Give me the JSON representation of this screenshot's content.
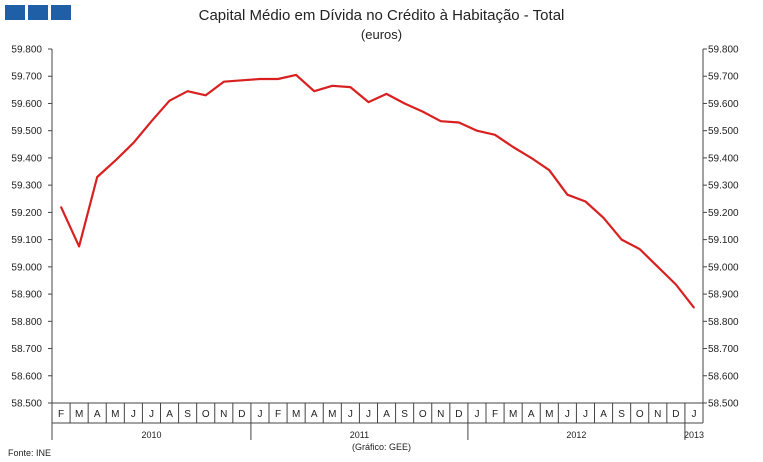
{
  "logo": {
    "color": "#1f5fa8"
  },
  "title": "Capital Médio em Dívida no Crédito à Habitação - Total",
  "subtitle": "(euros)",
  "source": "Fonte: INE",
  "credit": "(Gráfico: GEE)",
  "colors": {
    "line": "#d92020",
    "axis": "#444444"
  },
  "chart_data": {
    "type": "line",
    "title": "Capital Médio em Dívida no Crédito à Habitação - Total",
    "subtitle": "(euros)",
    "ylim": [
      58500,
      59800
    ],
    "y_ticks": [
      "58.500",
      "58.600",
      "58.700",
      "58.800",
      "58.900",
      "59.000",
      "59.100",
      "59.200",
      "59.300",
      "59.400",
      "59.500",
      "59.600",
      "59.700",
      "59.800"
    ],
    "y_tick_values": [
      58500,
      58600,
      58700,
      58800,
      58900,
      59000,
      59100,
      59200,
      59300,
      59400,
      59500,
      59600,
      59700,
      59800
    ],
    "y_axis_right": true,
    "grid": false,
    "legend": "none",
    "categories": [
      "F",
      "M",
      "A",
      "M",
      "J",
      "J",
      "A",
      "S",
      "O",
      "N",
      "D",
      "J",
      "F",
      "M",
      "A",
      "M",
      "J",
      "J",
      "A",
      "S",
      "O",
      "N",
      "D",
      "J",
      "F",
      "M",
      "A",
      "M",
      "J",
      "J",
      "A",
      "S",
      "O",
      "N",
      "D",
      "J"
    ],
    "year_labels": [
      {
        "label": "2010",
        "start": 0,
        "end": 10
      },
      {
        "label": "2011",
        "start": 11,
        "end": 22
      },
      {
        "label": "2012",
        "start": 23,
        "end": 34
      },
      {
        "label": "2013",
        "start": 35,
        "end": 35
      }
    ],
    "series": [
      {
        "values": [
          59220,
          59075,
          59330,
          59390,
          59455,
          59535,
          59610,
          59645,
          59630,
          59680,
          59685,
          59690,
          59690,
          59705,
          59645,
          59665,
          59660,
          59605,
          59635,
          59600,
          59570,
          59535,
          59530,
          59500,
          59485,
          59440,
          59400,
          59355,
          59265,
          59240,
          59180,
          59100,
          59065,
          59000,
          58935,
          58850
        ]
      }
    ]
  }
}
